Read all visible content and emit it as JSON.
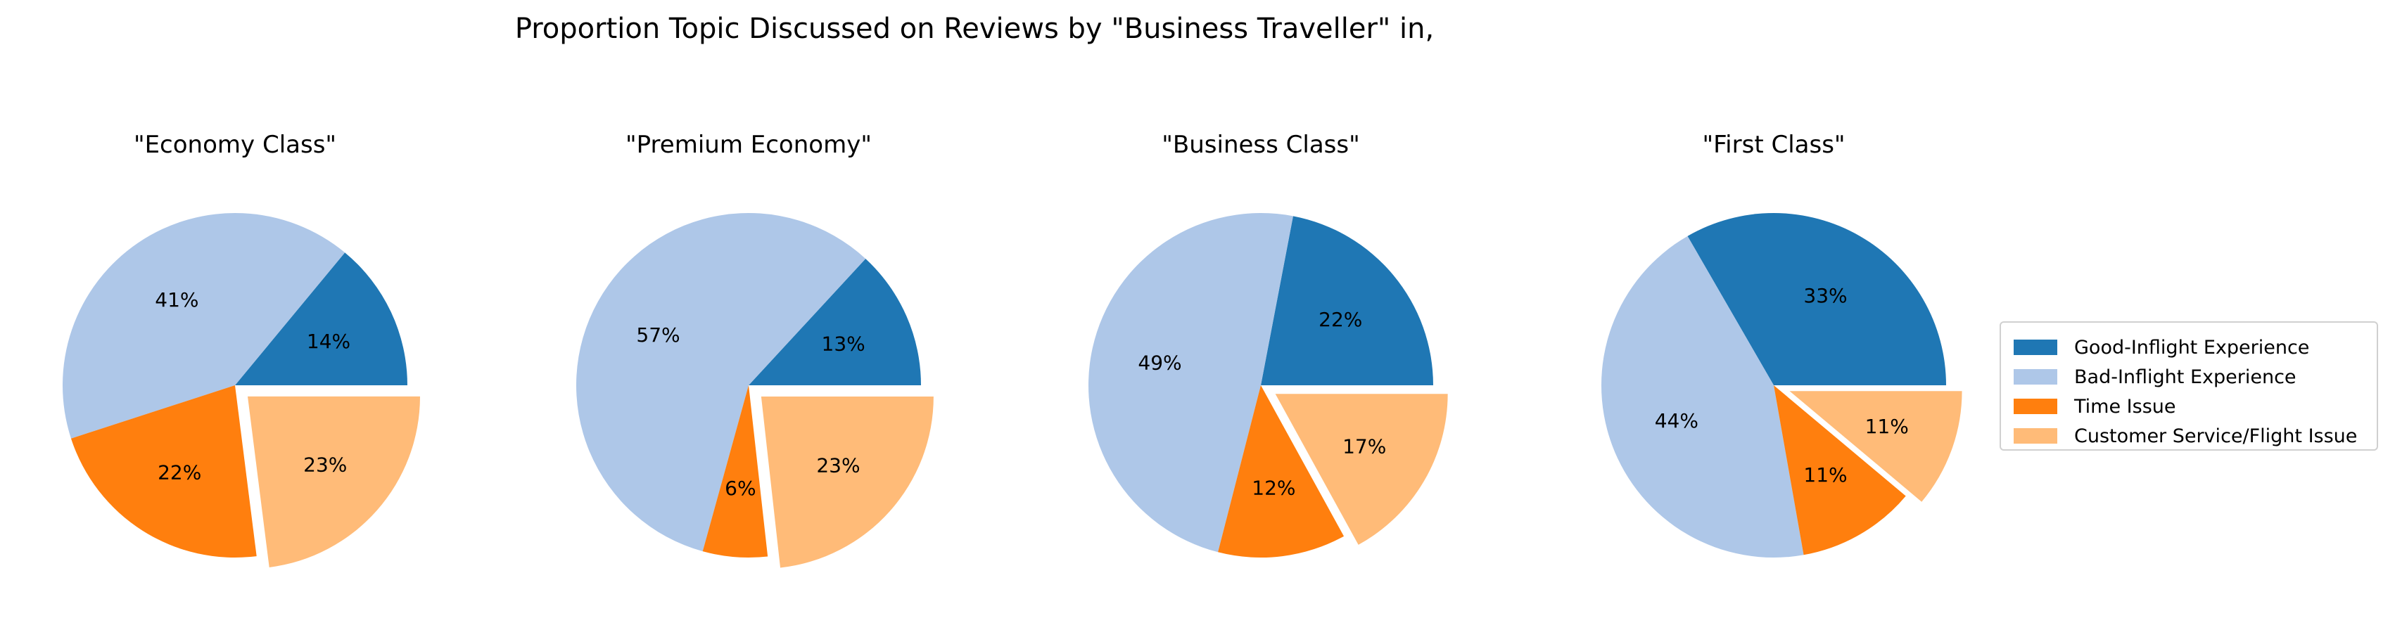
{
  "chart_data": {
    "type": "pie",
    "title": "Proportion Topic Discussed on Reviews by \"Business Traveller\" in,",
    "legend": {
      "placement": "right",
      "entries": [
        {
          "label": "Good-Inflight Experience",
          "color": "#1f77b4"
        },
        {
          "label": "Bad-Inflight Experience",
          "color": "#aec7e8"
        },
        {
          "label": "Time Issue",
          "color": "#ff7f0e"
        },
        {
          "label": "Customer Service/Flight Issue",
          "color": "#ffbb78"
        }
      ]
    },
    "charts": [
      {
        "title": "\"Economy Class\"",
        "values": [
          14,
          41,
          22,
          23
        ],
        "labels": [
          "14%",
          "41%",
          "22%",
          "23%"
        ]
      },
      {
        "title": "\"Premium Economy\"",
        "values": [
          13,
          57,
          6,
          23
        ],
        "labels": [
          "13%",
          "57%",
          "6%",
          "23%"
        ]
      },
      {
        "title": "\"Business Class\"",
        "values": [
          22,
          49,
          12,
          17
        ],
        "labels": [
          "22%",
          "49%",
          "12%",
          "17%"
        ]
      },
      {
        "title": "\"First Class\"",
        "values": [
          33,
          44,
          11,
          11
        ],
        "labels": [
          "33%",
          "44%",
          "11%",
          "11%"
        ]
      }
    ]
  }
}
